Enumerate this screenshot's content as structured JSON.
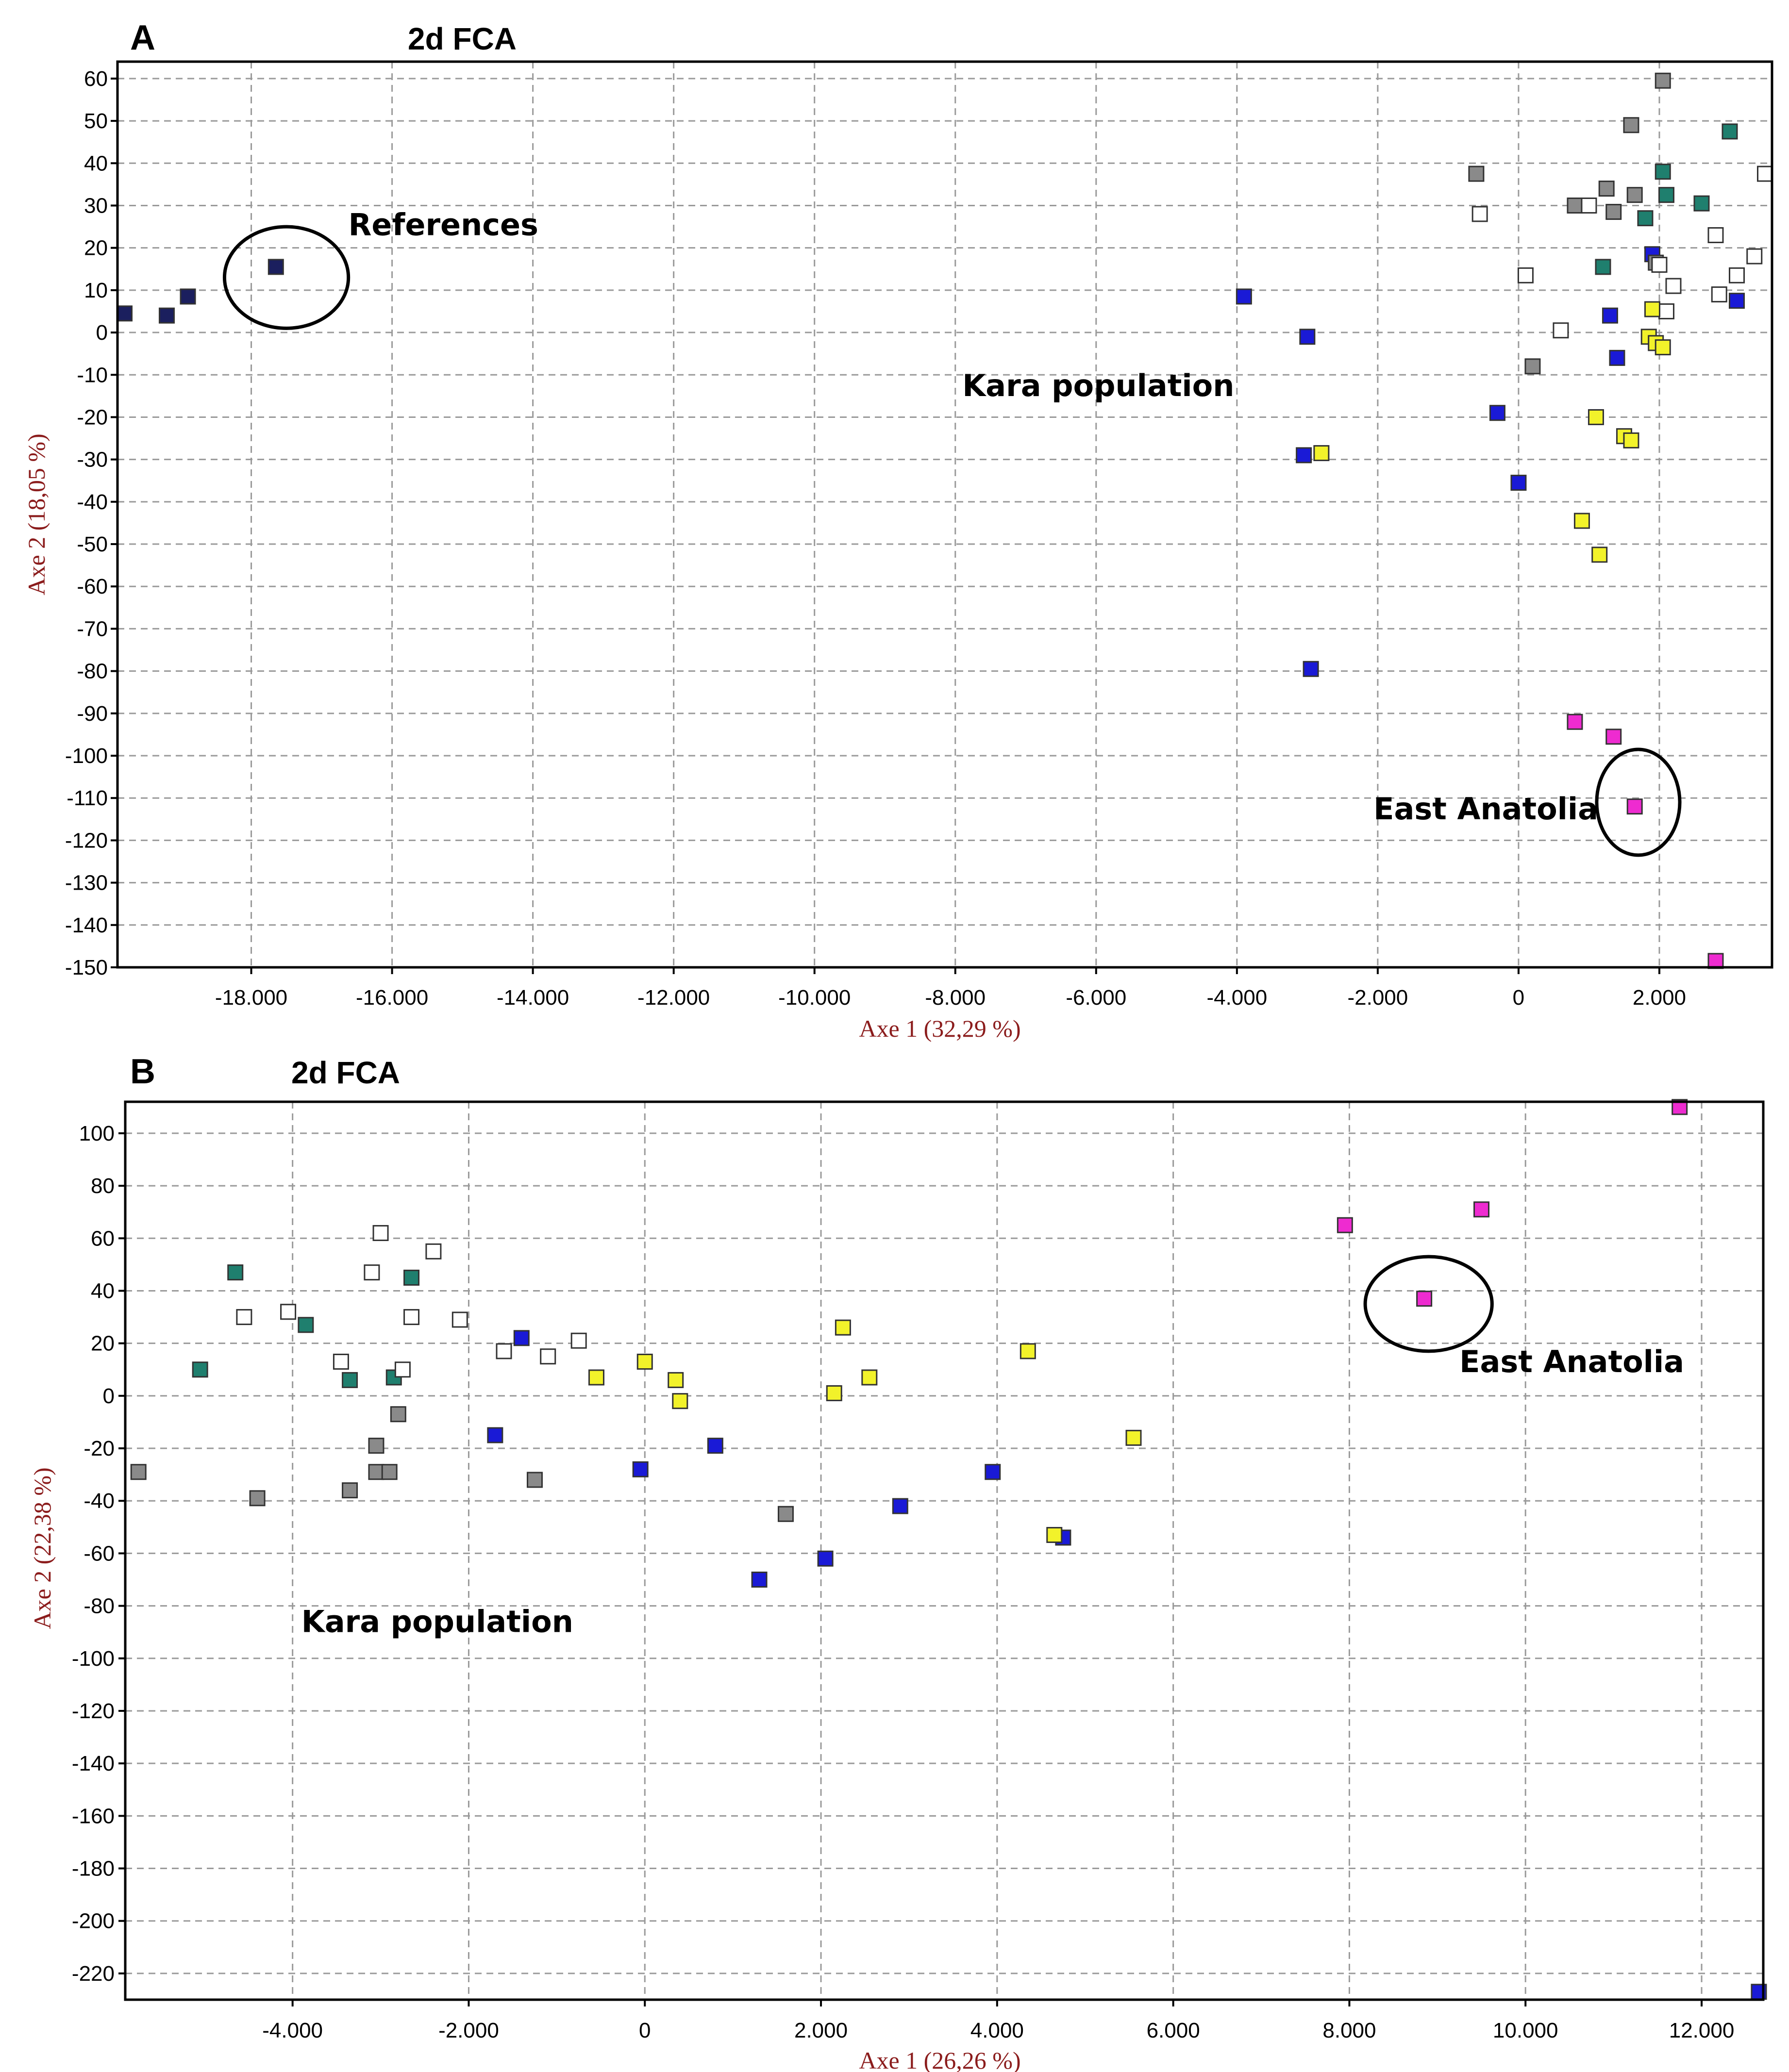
{
  "colors": {
    "navy": "#1b1f5e",
    "blue": "#1a1ad6",
    "teal": "#1f7f6e",
    "gray": "#8a8a8a",
    "white": "#ffffff",
    "yellow": "#f2f22a",
    "magenta": "#ee2bd0"
  },
  "chart_data": [
    {
      "type": "scatter",
      "panel": "A",
      "title": "2d FCA",
      "xlabel": "Axe 1 (32,29 %)",
      "ylabel": "Axe 2 (18,05 %)",
      "xlim": [
        -19900,
        3600
      ],
      "ylim": [
        -150,
        64
      ],
      "x_ticks": [
        -18000,
        -16000,
        -14000,
        -12000,
        -10000,
        -8000,
        -6000,
        -4000,
        -2000,
        0,
        2000
      ],
      "x_tick_labels": [
        "-18.000",
        "-16.000",
        "-14.000",
        "-12.000",
        "-10.000",
        "-8.000",
        "-6.000",
        "-4.000",
        "-2.000",
        "0",
        "2.000"
      ],
      "y_ticks": [
        60,
        50,
        40,
        30,
        20,
        10,
        0,
        -10,
        -20,
        -30,
        -40,
        -50,
        -60,
        -70,
        -80,
        -90,
        -100,
        -110,
        -120,
        -130,
        -140,
        -150
      ],
      "y_tick_labels": [
        "60",
        "50",
        "40",
        "30",
        "20",
        "10",
        "0",
        "-10",
        "-20",
        "-30",
        "-40",
        "-50",
        "-60",
        "-70",
        "-80",
        "-90",
        "-100",
        "-110",
        "-120",
        "-130",
        "-140",
        "-150"
      ],
      "grid": true,
      "annotations": [
        {
          "text": "References",
          "x": -16620,
          "y": 23,
          "circle": {
            "cx": -17500,
            "cy": 13,
            "rx": 880,
            "ry": 12
          }
        },
        {
          "text": "Kara population",
          "x": -7900,
          "y": -15
        },
        {
          "text": "East Anatolia",
          "x": -2060,
          "y": -115,
          "circle": {
            "cx": 1700,
            "cy": -111,
            "rx": 590,
            "ry": 12.5
          }
        }
      ],
      "series": [
        {
          "name": "navy",
          "color": "navy",
          "points": [
            [
              -19800,
              4.5
            ],
            [
              -19200,
              4
            ],
            [
              -18900,
              8.5
            ],
            [
              -17650,
              15.5
            ]
          ]
        },
        {
          "name": "blue",
          "color": "blue",
          "points": [
            [
              -3900,
              8.5
            ],
            [
              -3000,
              -1
            ],
            [
              -3050,
              -29
            ],
            [
              -2950,
              -79.5
            ],
            [
              -300,
              -19
            ],
            [
              0,
              -35.5
            ],
            [
              1300,
              4
            ],
            [
              1400,
              -6
            ],
            [
              1900,
              18.5
            ],
            [
              3100,
              7.5
            ]
          ]
        },
        {
          "name": "teal",
          "color": "teal",
          "points": [
            [
              1200,
              15.5
            ],
            [
              1800,
              27
            ],
            [
              2050,
              38
            ],
            [
              2100,
              32.5
            ],
            [
              2600,
              30.5
            ],
            [
              3000,
              47.5
            ]
          ]
        },
        {
          "name": "gray",
          "color": "gray",
          "points": [
            [
              -600,
              37.5
            ],
            [
              200,
              -8
            ],
            [
              800,
              30
            ],
            [
              1250,
              34
            ],
            [
              1350,
              28.5
            ],
            [
              1600,
              49
            ],
            [
              1650,
              32.5
            ],
            [
              1950,
              16.5
            ],
            [
              2050,
              59.5
            ]
          ]
        },
        {
          "name": "white",
          "color": "white",
          "points": [
            [
              -550,
              28
            ],
            [
              100,
              13.5
            ],
            [
              600,
              0.5
            ],
            [
              1000,
              30
            ],
            [
              2000,
              16
            ],
            [
              2100,
              5
            ],
            [
              2200,
              11
            ],
            [
              2800,
              23
            ],
            [
              2850,
              9
            ],
            [
              3100,
              13.5
            ],
            [
              3350,
              18
            ],
            [
              3500,
              37.5
            ]
          ]
        },
        {
          "name": "yellow",
          "color": "yellow",
          "points": [
            [
              -2800,
              -28.5
            ],
            [
              1100,
              -20
            ],
            [
              1500,
              -24.5
            ],
            [
              1600,
              -25.5
            ],
            [
              900,
              -44.5
            ],
            [
              1150,
              -52.5
            ],
            [
              1900,
              5.5
            ],
            [
              1850,
              -1
            ],
            [
              1950,
              -2.5
            ],
            [
              2050,
              -3.5
            ]
          ]
        },
        {
          "name": "magenta",
          "color": "magenta",
          "points": [
            [
              800,
              -92
            ],
            [
              1350,
              -95.5
            ],
            [
              1650,
              -112
            ],
            [
              2800,
              -148.5
            ]
          ]
        }
      ]
    },
    {
      "type": "scatter",
      "panel": "B",
      "title": "2d FCA",
      "xlabel": "Axe 1 (26,26 %)",
      "ylabel": "Axe 2 (22,38 %)",
      "xlim": [
        -5900,
        12700
      ],
      "ylim": [
        -230,
        112
      ],
      "x_ticks": [
        -4000,
        -2000,
        0,
        2000,
        4000,
        6000,
        8000,
        10000,
        12000
      ],
      "x_tick_labels": [
        "-4.000",
        "-2.000",
        "0",
        "2.000",
        "4.000",
        "6.000",
        "8.000",
        "10.000",
        "12.000"
      ],
      "y_ticks": [
        100,
        80,
        60,
        40,
        20,
        0,
        -20,
        -40,
        -60,
        -80,
        -100,
        -120,
        -140,
        -160,
        -180,
        -200,
        -220
      ],
      "y_tick_labels": [
        "100",
        "80",
        "60",
        "40",
        "20",
        "0",
        "-20",
        "-40",
        "-60",
        "-80",
        "-100",
        "-120",
        "-140",
        "-160",
        "-180",
        "-200",
        "-220"
      ],
      "grid": true,
      "annotations": [
        {
          "text": "Kara population",
          "x": -3900,
          "y": -90
        },
        {
          "text": "East Anatolia",
          "x": 9250,
          "y": 9,
          "circle": {
            "cx": 8900,
            "cy": 35,
            "rx": 720,
            "ry": 18
          }
        }
      ],
      "series": [
        {
          "name": "blue",
          "color": "blue",
          "points": [
            [
              -1400,
              22
            ],
            [
              -1700,
              -15
            ],
            [
              -50,
              -28
            ],
            [
              800,
              -19
            ],
            [
              1300,
              -70
            ],
            [
              2050,
              -62
            ],
            [
              2900,
              -42
            ],
            [
              3950,
              -29
            ],
            [
              4750,
              -54
            ],
            [
              12650,
              -227
            ]
          ]
        },
        {
          "name": "teal",
          "color": "teal",
          "points": [
            [
              -4650,
              47
            ],
            [
              -3850,
              27
            ],
            [
              -5050,
              10
            ],
            [
              -3350,
              6
            ],
            [
              -2650,
              45
            ],
            [
              -2850,
              7
            ]
          ]
        },
        {
          "name": "gray",
          "color": "gray",
          "points": [
            [
              -5750,
              -29
            ],
            [
              -4400,
              -39
            ],
            [
              -3350,
              -36
            ],
            [
              -3050,
              -19
            ],
            [
              -3050,
              -29
            ],
            [
              -2900,
              -29
            ],
            [
              -2800,
              -7
            ],
            [
              -1250,
              -32
            ],
            [
              1600,
              -45
            ]
          ]
        },
        {
          "name": "white",
          "color": "white",
          "points": [
            [
              -4550,
              30
            ],
            [
              -4050,
              32
            ],
            [
              -3450,
              13
            ],
            [
              -3100,
              47
            ],
            [
              -3000,
              62
            ],
            [
              -2750,
              10
            ],
            [
              -2650,
              30
            ],
            [
              -2400,
              55
            ],
            [
              -2100,
              29
            ],
            [
              -1600,
              17
            ],
            [
              -1100,
              15
            ],
            [
              -750,
              21
            ]
          ]
        },
        {
          "name": "yellow",
          "color": "yellow",
          "points": [
            [
              -550,
              7
            ],
            [
              0,
              13
            ],
            [
              350,
              6
            ],
            [
              400,
              -2
            ],
            [
              2150,
              1
            ],
            [
              2250,
              26
            ],
            [
              2550,
              7
            ],
            [
              4350,
              17
            ],
            [
              4650,
              -53
            ],
            [
              5550,
              -16
            ]
          ]
        },
        {
          "name": "magenta",
          "color": "magenta",
          "points": [
            [
              7950,
              65
            ],
            [
              8850,
              37
            ],
            [
              9500,
              71
            ],
            [
              11750,
              110
            ]
          ]
        }
      ]
    }
  ]
}
